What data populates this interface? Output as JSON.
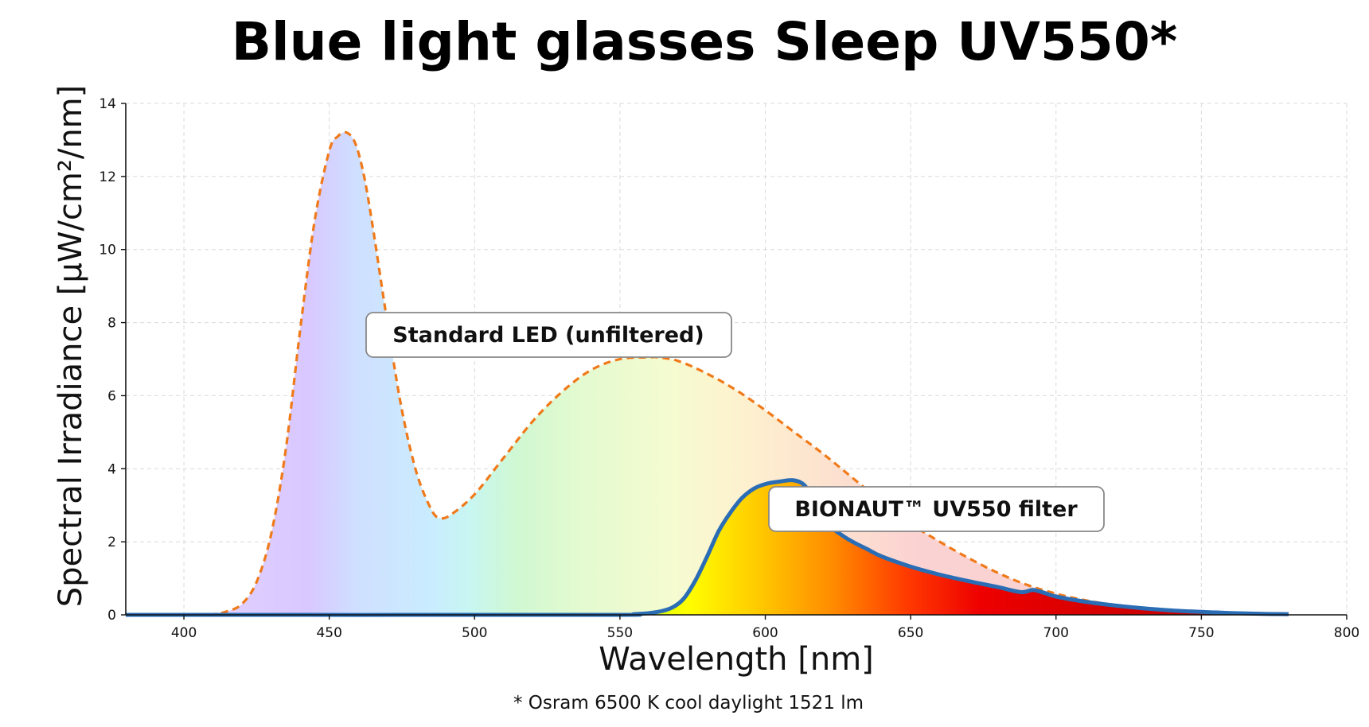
{
  "chart_data": {
    "type": "area",
    "title": "Blue light glasses Sleep UV550*",
    "xlabel": "Wavelength [nm]",
    "ylabel": "Spectral Irradiance [µW/cm²/nm]",
    "footnote": "* Osram 6500 K cool daylight 1521 lm",
    "xlim": [
      380,
      800
    ],
    "ylim": [
      0,
      14
    ],
    "xticks": [
      "400",
      "450",
      "500",
      "550",
      "600",
      "650",
      "700",
      "750",
      "800"
    ],
    "yticks": [
      "0",
      "2",
      "4",
      "6",
      "8",
      "10",
      "12",
      "14"
    ],
    "grid": true,
    "series": [
      {
        "name": "Standard LED (unfiltered)",
        "style": "dashed",
        "color": "#f07a1a",
        "x": [
          380,
          400,
          410,
          415,
          420,
          425,
          430,
          435,
          440,
          445,
          450,
          453,
          456,
          459,
          462,
          465,
          470,
          475,
          480,
          485,
          488,
          492,
          500,
          510,
          520,
          530,
          540,
          550,
          560,
          563,
          570,
          580,
          590,
          600,
          610,
          620,
          630,
          640,
          650,
          660,
          670,
          680,
          690,
          700,
          710,
          720,
          730,
          740,
          750,
          760,
          770,
          780
        ],
        "y": [
          0,
          0,
          0.02,
          0.1,
          0.3,
          0.9,
          2.2,
          4.5,
          7.8,
          10.8,
          12.7,
          13.1,
          13.2,
          12.9,
          12.0,
          10.6,
          8.0,
          5.6,
          3.9,
          2.9,
          2.65,
          2.75,
          3.3,
          4.3,
          5.3,
          6.1,
          6.7,
          7.0,
          7.05,
          7.05,
          6.95,
          6.6,
          6.15,
          5.6,
          5.0,
          4.4,
          3.75,
          3.1,
          2.5,
          2.0,
          1.55,
          1.15,
          0.82,
          0.58,
          0.4,
          0.27,
          0.18,
          0.11,
          0.07,
          0.04,
          0.02,
          0.01
        ]
      },
      {
        "name": "BIONAUT™ UV550 filter",
        "style": "solid",
        "color": "#2a6db5",
        "x": [
          380,
          540,
          555,
          563,
          568,
          572,
          576,
          580,
          584,
          588,
          592,
          596,
          600,
          605,
          610,
          614,
          618,
          622,
          626,
          630,
          635,
          640,
          650,
          660,
          670,
          680,
          688,
          692,
          696,
          700,
          710,
          720,
          730,
          740,
          750,
          760,
          770,
          780
        ],
        "y": [
          0,
          0,
          0.02,
          0.08,
          0.2,
          0.45,
          0.95,
          1.6,
          2.3,
          2.8,
          3.2,
          3.45,
          3.58,
          3.65,
          3.68,
          3.5,
          2.9,
          2.45,
          2.2,
          2.0,
          1.8,
          1.6,
          1.32,
          1.1,
          0.92,
          0.76,
          0.62,
          0.68,
          0.6,
          0.5,
          0.36,
          0.26,
          0.18,
          0.12,
          0.08,
          0.05,
          0.03,
          0.02
        ]
      }
    ],
    "annotations": [
      {
        "text": "Standard LED (unfiltered)",
        "x": 500,
        "y": 7.8
      },
      {
        "text": "BIONAUT™ UV550 filter",
        "x": 640,
        "y": 2.95
      }
    ]
  }
}
